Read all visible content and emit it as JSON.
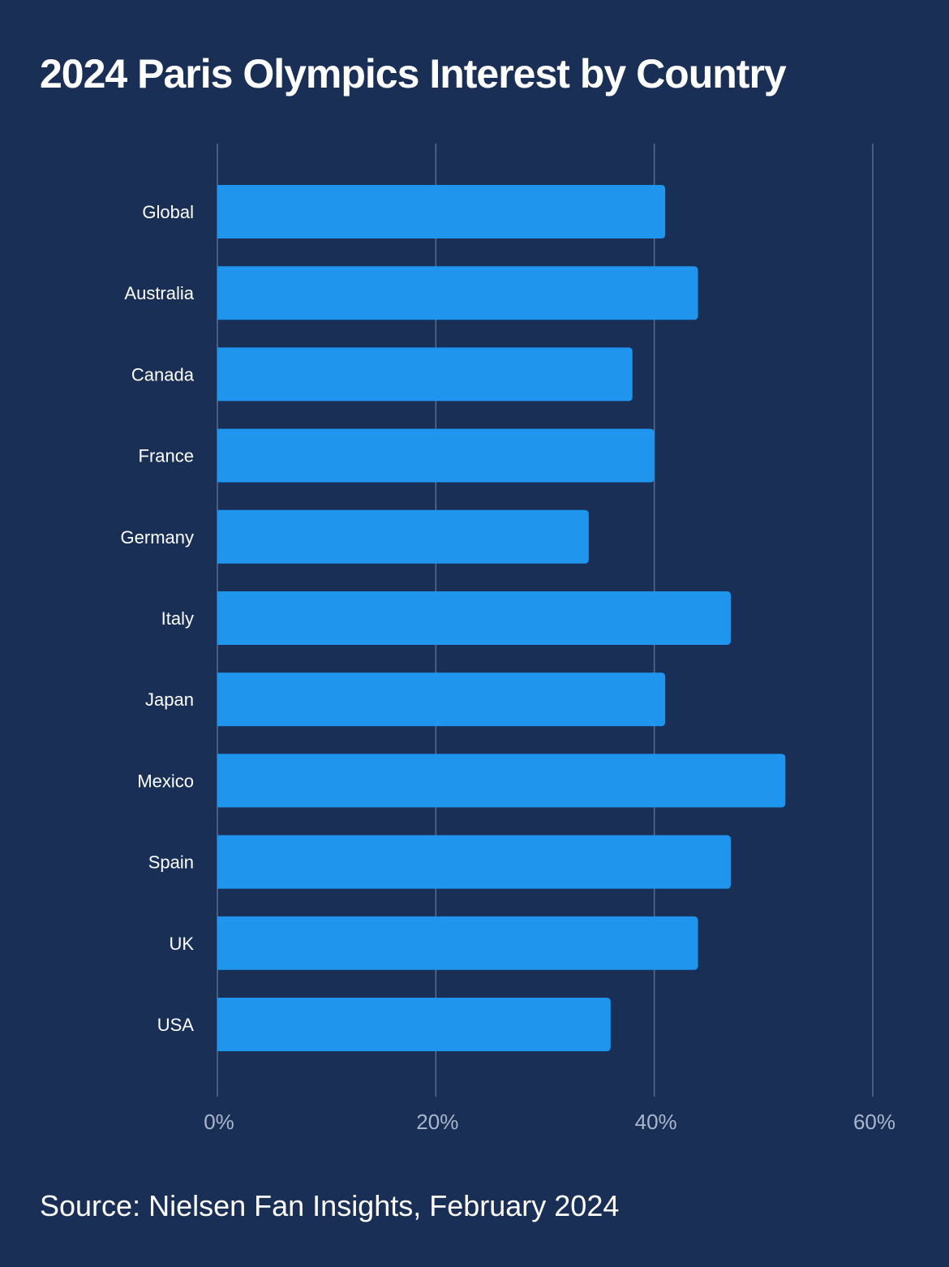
{
  "header": {
    "title": "2024 Paris Olympics Interest by Country"
  },
  "footer": {
    "source": "Source: Nielsen Fan Insights, February 2024"
  },
  "colors": {
    "background": "#1a2f55",
    "bar": "#1f95ee",
    "grid": "#5a6d8f",
    "label": "#ffffff",
    "tick": "#a9b6cc"
  },
  "chart_data": {
    "type": "bar",
    "orientation": "horizontal",
    "title": "2024 Paris Olympics Interest by Country",
    "categories": [
      "Global",
      "Australia",
      "Canada",
      "France",
      "Germany",
      "Italy",
      "Japan",
      "Mexico",
      "Spain",
      "UK",
      "USA"
    ],
    "values": [
      41,
      44,
      38,
      40,
      34,
      47,
      41,
      52,
      47,
      44,
      36
    ],
    "unit": "%",
    "xlim": [
      0,
      60
    ],
    "xticks": [
      "0%",
      "20%",
      "40%",
      "60%"
    ],
    "grid": true,
    "xlabel": "",
    "ylabel": ""
  }
}
